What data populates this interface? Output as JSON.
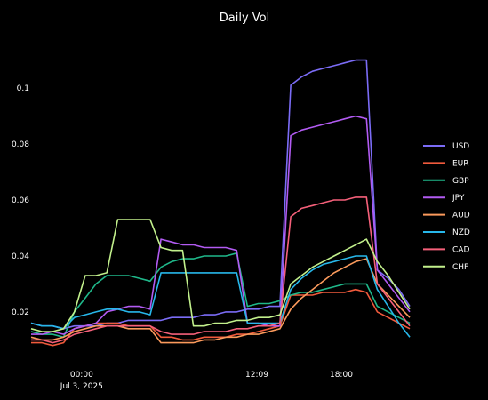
{
  "chart_data": {
    "type": "line",
    "title": "Daily Vol",
    "xlabel": "",
    "ylabel": "",
    "x": [
      "-03:30",
      "-02:45",
      "-02:00",
      "-01:15",
      "-00:30",
      "00:15",
      "01:00",
      "01:45",
      "02:30",
      "03:15",
      "04:00",
      "04:45",
      "05:30",
      "06:15",
      "07:00",
      "07:45",
      "08:30",
      "09:15",
      "10:00",
      "10:45",
      "11:30",
      "12:15",
      "13:00",
      "13:45",
      "14:30",
      "15:15",
      "16:00",
      "16:45",
      "17:30",
      "18:15",
      "19:00",
      "19:45",
      "20:30",
      "21:15",
      "22:00",
      "22:45"
    ],
    "x_tick_labels": [
      "00:00",
      "12:09",
      "18:00"
    ],
    "x_tick_sublabel": "Jul 3, 2025",
    "y_ticks": [
      0.02,
      0.04,
      0.06,
      0.08,
      0.1
    ],
    "y_tick_labels": [
      "0.02",
      "0.04",
      "0.06",
      "0.08",
      "0.1"
    ],
    "ylim": [
      0.006,
      0.114
    ],
    "grid": false,
    "legend_position": "right",
    "series": [
      {
        "name": "USD",
        "color": "#7b6cf6",
        "values": [
          0.016,
          0.015,
          0.015,
          0.014,
          0.015,
          0.015,
          0.015,
          0.016,
          0.016,
          0.017,
          0.017,
          0.017,
          0.017,
          0.018,
          0.018,
          0.018,
          0.019,
          0.019,
          0.02,
          0.02,
          0.021,
          0.021,
          0.022,
          0.022,
          0.101,
          0.104,
          0.106,
          0.107,
          0.108,
          0.109,
          0.11,
          0.11,
          0.035,
          0.032,
          0.028,
          0.022
        ]
      },
      {
        "name": "EUR",
        "color": "#f05a3c",
        "values": [
          0.009,
          0.009,
          0.008,
          0.009,
          0.014,
          0.015,
          0.016,
          0.016,
          0.016,
          0.015,
          0.015,
          0.015,
          0.011,
          0.011,
          0.01,
          0.01,
          0.011,
          0.011,
          0.011,
          0.012,
          0.012,
          0.013,
          0.014,
          0.015,
          0.026,
          0.026,
          0.026,
          0.027,
          0.027,
          0.027,
          0.028,
          0.027,
          0.02,
          0.018,
          0.016,
          0.014
        ]
      },
      {
        "name": "GBP",
        "color": "#1fb88a",
        "values": [
          0.013,
          0.012,
          0.012,
          0.011,
          0.02,
          0.025,
          0.03,
          0.033,
          0.033,
          0.033,
          0.032,
          0.031,
          0.036,
          0.038,
          0.039,
          0.039,
          0.04,
          0.04,
          0.04,
          0.041,
          0.022,
          0.023,
          0.023,
          0.024,
          0.026,
          0.027,
          0.027,
          0.028,
          0.029,
          0.03,
          0.03,
          0.03,
          0.022,
          0.02,
          0.018,
          0.016
        ]
      },
      {
        "name": "JPY",
        "color": "#b25bf2",
        "values": [
          0.012,
          0.012,
          0.013,
          0.012,
          0.014,
          0.015,
          0.016,
          0.02,
          0.021,
          0.022,
          0.022,
          0.021,
          0.046,
          0.045,
          0.044,
          0.044,
          0.043,
          0.043,
          0.043,
          0.042,
          0.016,
          0.016,
          0.015,
          0.015,
          0.083,
          0.085,
          0.086,
          0.087,
          0.088,
          0.089,
          0.09,
          0.089,
          0.035,
          0.03,
          0.025,
          0.02
        ]
      },
      {
        "name": "AUD",
        "color": "#fb9a5c",
        "values": [
          0.011,
          0.01,
          0.01,
          0.011,
          0.013,
          0.014,
          0.015,
          0.015,
          0.015,
          0.014,
          0.014,
          0.014,
          0.009,
          0.009,
          0.009,
          0.009,
          0.01,
          0.01,
          0.011,
          0.011,
          0.012,
          0.012,
          0.013,
          0.014,
          0.021,
          0.025,
          0.028,
          0.031,
          0.034,
          0.036,
          0.038,
          0.039,
          0.03,
          0.026,
          0.022,
          0.018
        ]
      },
      {
        "name": "NZD",
        "color": "#27b7ea",
        "values": [
          0.016,
          0.015,
          0.015,
          0.014,
          0.018,
          0.019,
          0.02,
          0.021,
          0.021,
          0.02,
          0.02,
          0.019,
          0.034,
          0.034,
          0.034,
          0.034,
          0.034,
          0.034,
          0.034,
          0.034,
          0.016,
          0.016,
          0.016,
          0.016,
          0.028,
          0.032,
          0.035,
          0.037,
          0.038,
          0.039,
          0.04,
          0.04,
          0.028,
          0.022,
          0.016,
          0.011
        ]
      },
      {
        "name": "CAD",
        "color": "#f5607a",
        "values": [
          0.01,
          0.01,
          0.009,
          0.01,
          0.012,
          0.013,
          0.014,
          0.015,
          0.015,
          0.015,
          0.015,
          0.015,
          0.013,
          0.012,
          0.012,
          0.012,
          0.013,
          0.013,
          0.013,
          0.014,
          0.014,
          0.015,
          0.015,
          0.016,
          0.054,
          0.057,
          0.058,
          0.059,
          0.06,
          0.06,
          0.061,
          0.061,
          0.03,
          0.025,
          0.02,
          0.015
        ]
      },
      {
        "name": "CHF",
        "color": "#c2f08c",
        "values": [
          0.014,
          0.013,
          0.013,
          0.014,
          0.02,
          0.033,
          0.033,
          0.034,
          0.053,
          0.053,
          0.053,
          0.053,
          0.043,
          0.042,
          0.042,
          0.015,
          0.015,
          0.016,
          0.016,
          0.017,
          0.017,
          0.018,
          0.018,
          0.019,
          0.03,
          0.033,
          0.036,
          0.038,
          0.04,
          0.042,
          0.044,
          0.046,
          0.038,
          0.033,
          0.027,
          0.021
        ]
      }
    ]
  }
}
